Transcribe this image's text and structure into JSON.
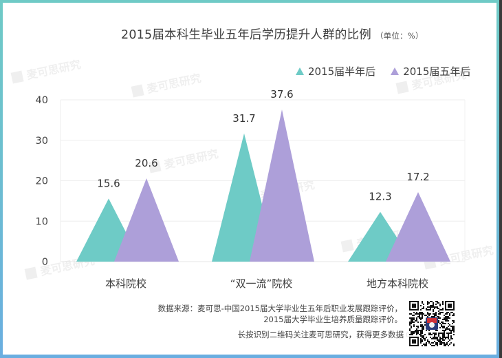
{
  "title": "2015届本科生毕业五年后学历提升人群的比例",
  "unit_note": "（单位：%）",
  "legend": [
    {
      "label": "2015届半年后",
      "color": "#6ecbc6",
      "icon": "triangle-icon"
    },
    {
      "label": "2015届五年后",
      "color": "#ad9fd9",
      "icon": "triangle-icon"
    }
  ],
  "y_axis": {
    "ticks": [
      "0",
      "10",
      "20",
      "30",
      "40"
    ]
  },
  "categories": [
    "本科院校",
    "“双一流”院校",
    "地方本科院校"
  ],
  "source_lines": [
    "数据来源：麦可思-中国2015届大学毕业生五年后职业发展跟踪评价，",
    "2015届大学毕业生培养质量跟踪评价。"
  ],
  "follow_text": "长按识别二维码关注麦可思研究，获得更多数据",
  "watermark": "麦可思研究",
  "colors": {
    "teal": "#6ecbc6",
    "purple": "#ad9fd9",
    "frame_top": "#6fcac6",
    "frame_bottom": "#6aaee0"
  },
  "chart_data": {
    "type": "bar",
    "subtype": "triangle-bar",
    "title": "2015届本科生毕业五年后学历提升人群的比例",
    "subtitle": "（单位：%）",
    "categories": [
      "本科院校",
      "“双一流”院校",
      "地方本科院校"
    ],
    "series": [
      {
        "name": "2015届半年后",
        "color": "#6ecbc6",
        "values": [
          15.6,
          31.7,
          12.3
        ]
      },
      {
        "name": "2015届五年后",
        "color": "#ad9fd9",
        "values": [
          20.6,
          37.6,
          17.2
        ]
      }
    ],
    "xlabel": "",
    "ylabel": "",
    "ylim": [
      0,
      40
    ],
    "yticks": [
      0,
      10,
      20,
      30,
      40
    ],
    "grid": true,
    "legend_position": "top-right",
    "data_labels": true
  }
}
